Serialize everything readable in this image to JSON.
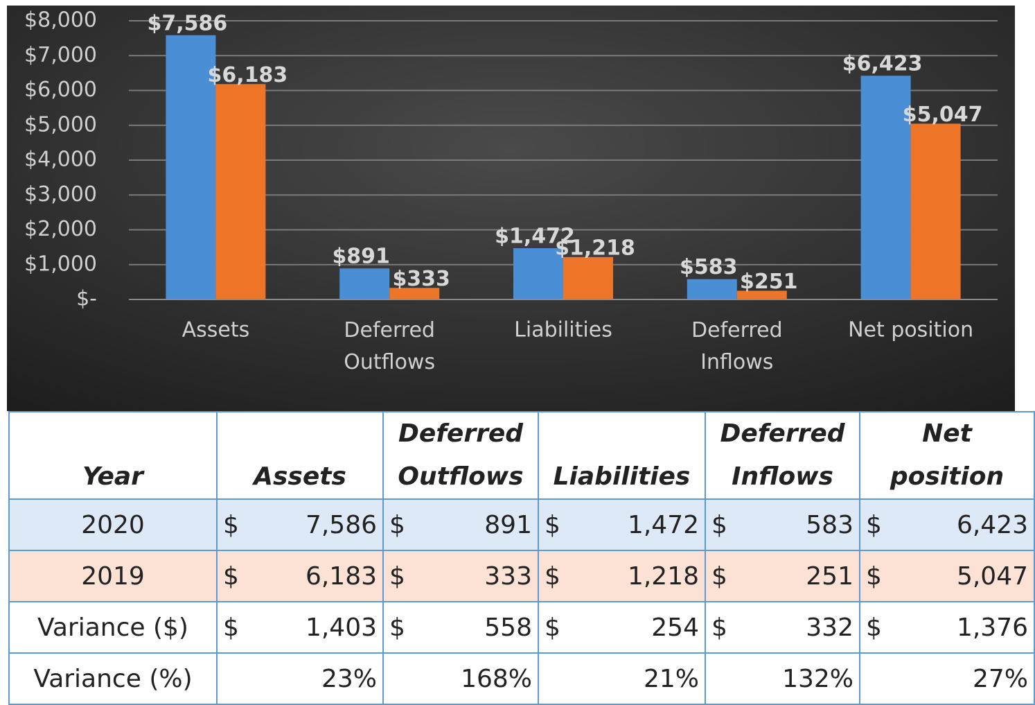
{
  "chart_data": {
    "type": "bar",
    "categories": [
      "Assets",
      "Deferred Outflows",
      "Liabilities",
      "Deferred Inflows",
      "Net position"
    ],
    "series": [
      {
        "color": "#4a8fd6",
        "values": [
          7586,
          891,
          1472,
          583,
          6423
        ],
        "value_labels": [
          "$7,586",
          "$891",
          "$1,472",
          "$583",
          "$6,423"
        ]
      },
      {
        "color": "#ee7428",
        "values": [
          6183,
          333,
          1218,
          251,
          5047
        ],
        "value_labels": [
          "$6,183",
          "$333",
          "$1,218",
          "$251",
          "$5,047"
        ]
      }
    ],
    "ylim": [
      0,
      8000
    ],
    "yticks": [
      {
        "value": 0,
        "label": "$-"
      },
      {
        "value": 1000,
        "label": "$1,000"
      },
      {
        "value": 2000,
        "label": "$2,000"
      },
      {
        "value": 3000,
        "label": "$3,000"
      },
      {
        "value": 4000,
        "label": "$4,000"
      },
      {
        "value": 5000,
        "label": "$5,000"
      },
      {
        "value": 6000,
        "label": "$6,000"
      },
      {
        "value": 7000,
        "label": "$7,000"
      },
      {
        "value": 8000,
        "label": "$8,000"
      }
    ],
    "grid": true
  },
  "table": {
    "header": [
      "Year",
      "Assets",
      "Deferred Outflows",
      "Liabilities",
      "Deferred Inflows",
      "Net position"
    ],
    "rows": [
      {
        "label": "2020",
        "cells": [
          {
            "symbol": "$",
            "amount": "7,586"
          },
          {
            "symbol": "$",
            "amount": "891"
          },
          {
            "symbol": "$",
            "amount": "1,472"
          },
          {
            "symbol": "$",
            "amount": "583"
          },
          {
            "symbol": "$",
            "amount": "6,423"
          }
        ]
      },
      {
        "label": "2019",
        "cells": [
          {
            "symbol": "$",
            "amount": "6,183"
          },
          {
            "symbol": "$",
            "amount": "333"
          },
          {
            "symbol": "$",
            "amount": "1,218"
          },
          {
            "symbol": "$",
            "amount": "251"
          },
          {
            "symbol": "$",
            "amount": "5,047"
          }
        ]
      },
      {
        "label": "Variance ($)",
        "cells": [
          {
            "symbol": "$",
            "amount": "1,403"
          },
          {
            "symbol": "$",
            "amount": "558"
          },
          {
            "symbol": "$",
            "amount": "254"
          },
          {
            "symbol": "$",
            "amount": "332"
          },
          {
            "symbol": "$",
            "amount": "1,376"
          }
        ]
      },
      {
        "label": "Variance (%)",
        "cells": [
          {
            "amount": "23%"
          },
          {
            "amount": "168%"
          },
          {
            "amount": "21%"
          },
          {
            "amount": "132%"
          },
          {
            "amount": "27%"
          }
        ]
      }
    ]
  }
}
